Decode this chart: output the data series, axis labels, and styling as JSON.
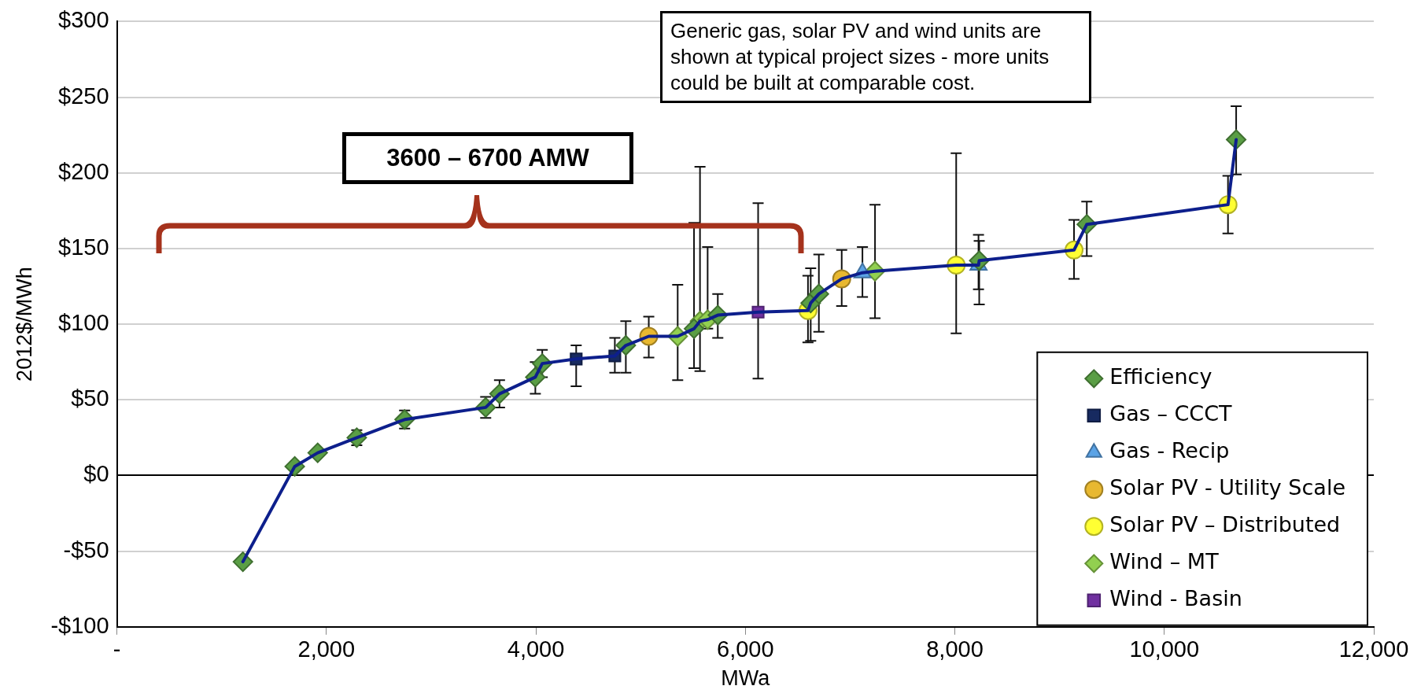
{
  "chart_data": {
    "type": "scatter",
    "xlabel": "MWa",
    "ylabel": "2012$/MWh",
    "xlim": [
      0,
      12000
    ],
    "xticks": [
      {
        "value": 0,
        "label": "-"
      },
      {
        "value": 2000,
        "label": "2,000"
      },
      {
        "value": 4000,
        "label": "4,000"
      },
      {
        "value": 6000,
        "label": "6,000"
      },
      {
        "value": 8000,
        "label": "8,000"
      },
      {
        "value": 10000,
        "label": "10,000"
      },
      {
        "value": 12000,
        "label": "12,000"
      }
    ],
    "ylim": [
      -100,
      300
    ],
    "yticks": [
      {
        "value": -100,
        "label": "-$100"
      },
      {
        "value": -50,
        "label": "-$50"
      },
      {
        "value": 0,
        "label": "$0"
      },
      {
        "value": 50,
        "label": "$50"
      },
      {
        "value": 100,
        "label": "$100"
      },
      {
        "value": 150,
        "label": "$150"
      },
      {
        "value": 200,
        "label": "$200"
      },
      {
        "value": 250,
        "label": "$250"
      },
      {
        "value": 300,
        "label": "$300"
      }
    ],
    "grid": "y",
    "legend": "bottom right",
    "annotations": [
      "3600 – 6700 AMW",
      "Generic gas, solar PV and wind units are shown at typical project sizes - more units could be built at comparable cost."
    ],
    "series": [
      {
        "type": "line",
        "color": "#0d1f8c",
        "marker": "none",
        "line_style": "solid",
        "x": [
          1203,
          1698,
          1917,
          2290,
          2747,
          3521,
          3653,
          3995,
          4061,
          4385,
          4754,
          4859,
          5078,
          5354,
          5510,
          5567,
          5640,
          5737,
          6122,
          6598,
          6624,
          6702,
          6920,
          7118,
          7238,
          8013,
          8226,
          8233,
          9138,
          9260,
          10608,
          10686
        ],
        "values": [
          -57,
          6,
          15,
          25,
          37,
          45,
          54,
          65,
          74,
          77,
          79,
          86,
          92,
          92,
          97,
          102,
          103,
          106,
          108,
          109,
          114,
          120,
          130,
          134,
          135,
          139,
          139,
          142,
          149,
          166,
          179,
          222
        ]
      },
      {
        "name": "Efficiency",
        "color": "#5a9e45",
        "marker": "diamond",
        "x": [
          1203,
          1698,
          1917,
          2290,
          2747,
          3521,
          3653,
          3995,
          4061,
          4859,
          5510,
          5737,
          6624,
          6702,
          8233,
          9260,
          10686
        ],
        "values": [
          -57,
          6,
          15,
          25,
          37,
          45,
          54,
          65,
          74,
          86,
          97,
          106,
          114,
          120,
          142,
          166,
          222
        ],
        "errors": [
          null,
          null,
          null,
          5,
          6,
          7,
          9,
          [
            54,
            75
          ],
          9,
          [
            68,
            102
          ],
          [
            71,
            167
          ],
          [
            91,
            120
          ],
          [
            89,
            137
          ],
          [
            95,
            146
          ],
          [
            113,
            155
          ],
          [
            145,
            181
          ],
          [
            199,
            244
          ]
        ]
      },
      {
        "name": "Gas – CCCT",
        "color": "#172a60",
        "marker": "square",
        "x": [
          4385,
          4754
        ],
        "values": [
          77,
          79
        ],
        "errors": [
          [
            59,
            86
          ],
          [
            68,
            91
          ]
        ]
      },
      {
        "name": "Gas - Recip",
        "color": "#5ba3e6",
        "marker": "triangle",
        "x": [
          7118,
          8226
        ],
        "values": [
          134,
          139
        ],
        "errors": [
          [
            118,
            151
          ],
          [
            123,
            159
          ]
        ]
      },
      {
        "name": "Solar PV - Utility Scale",
        "color": "#e8b830",
        "marker": "circle",
        "x": [
          5078,
          6920
        ],
        "values": [
          92,
          130
        ],
        "errors": [
          [
            78,
            105
          ],
          [
            112,
            149
          ]
        ]
      },
      {
        "name": "Solar PV – Distributed",
        "color": "#ffff33",
        "marker": "circle",
        "x": [
          6598,
          8013,
          9138,
          10608
        ],
        "values": [
          109,
          139,
          149,
          179
        ],
        "errors": [
          [
            88,
            132
          ],
          [
            94,
            213
          ],
          [
            130,
            169
          ],
          [
            160,
            198
          ]
        ]
      },
      {
        "name": "Wind – MT",
        "color": "#92d050",
        "marker": "diamond",
        "x": [
          5354,
          5567,
          5640,
          7238
        ],
        "values": [
          92,
          102,
          103,
          135
        ],
        "errors": [
          [
            63,
            126
          ],
          [
            69,
            204
          ],
          [
            97,
            151
          ],
          [
            104,
            179
          ]
        ]
      },
      {
        "name": "Wind - Basin",
        "color": "#7030a0",
        "marker": "square",
        "x": [
          6122
        ],
        "values": [
          108
        ],
        "errors": [
          [
            64,
            180
          ]
        ]
      }
    ]
  }
}
